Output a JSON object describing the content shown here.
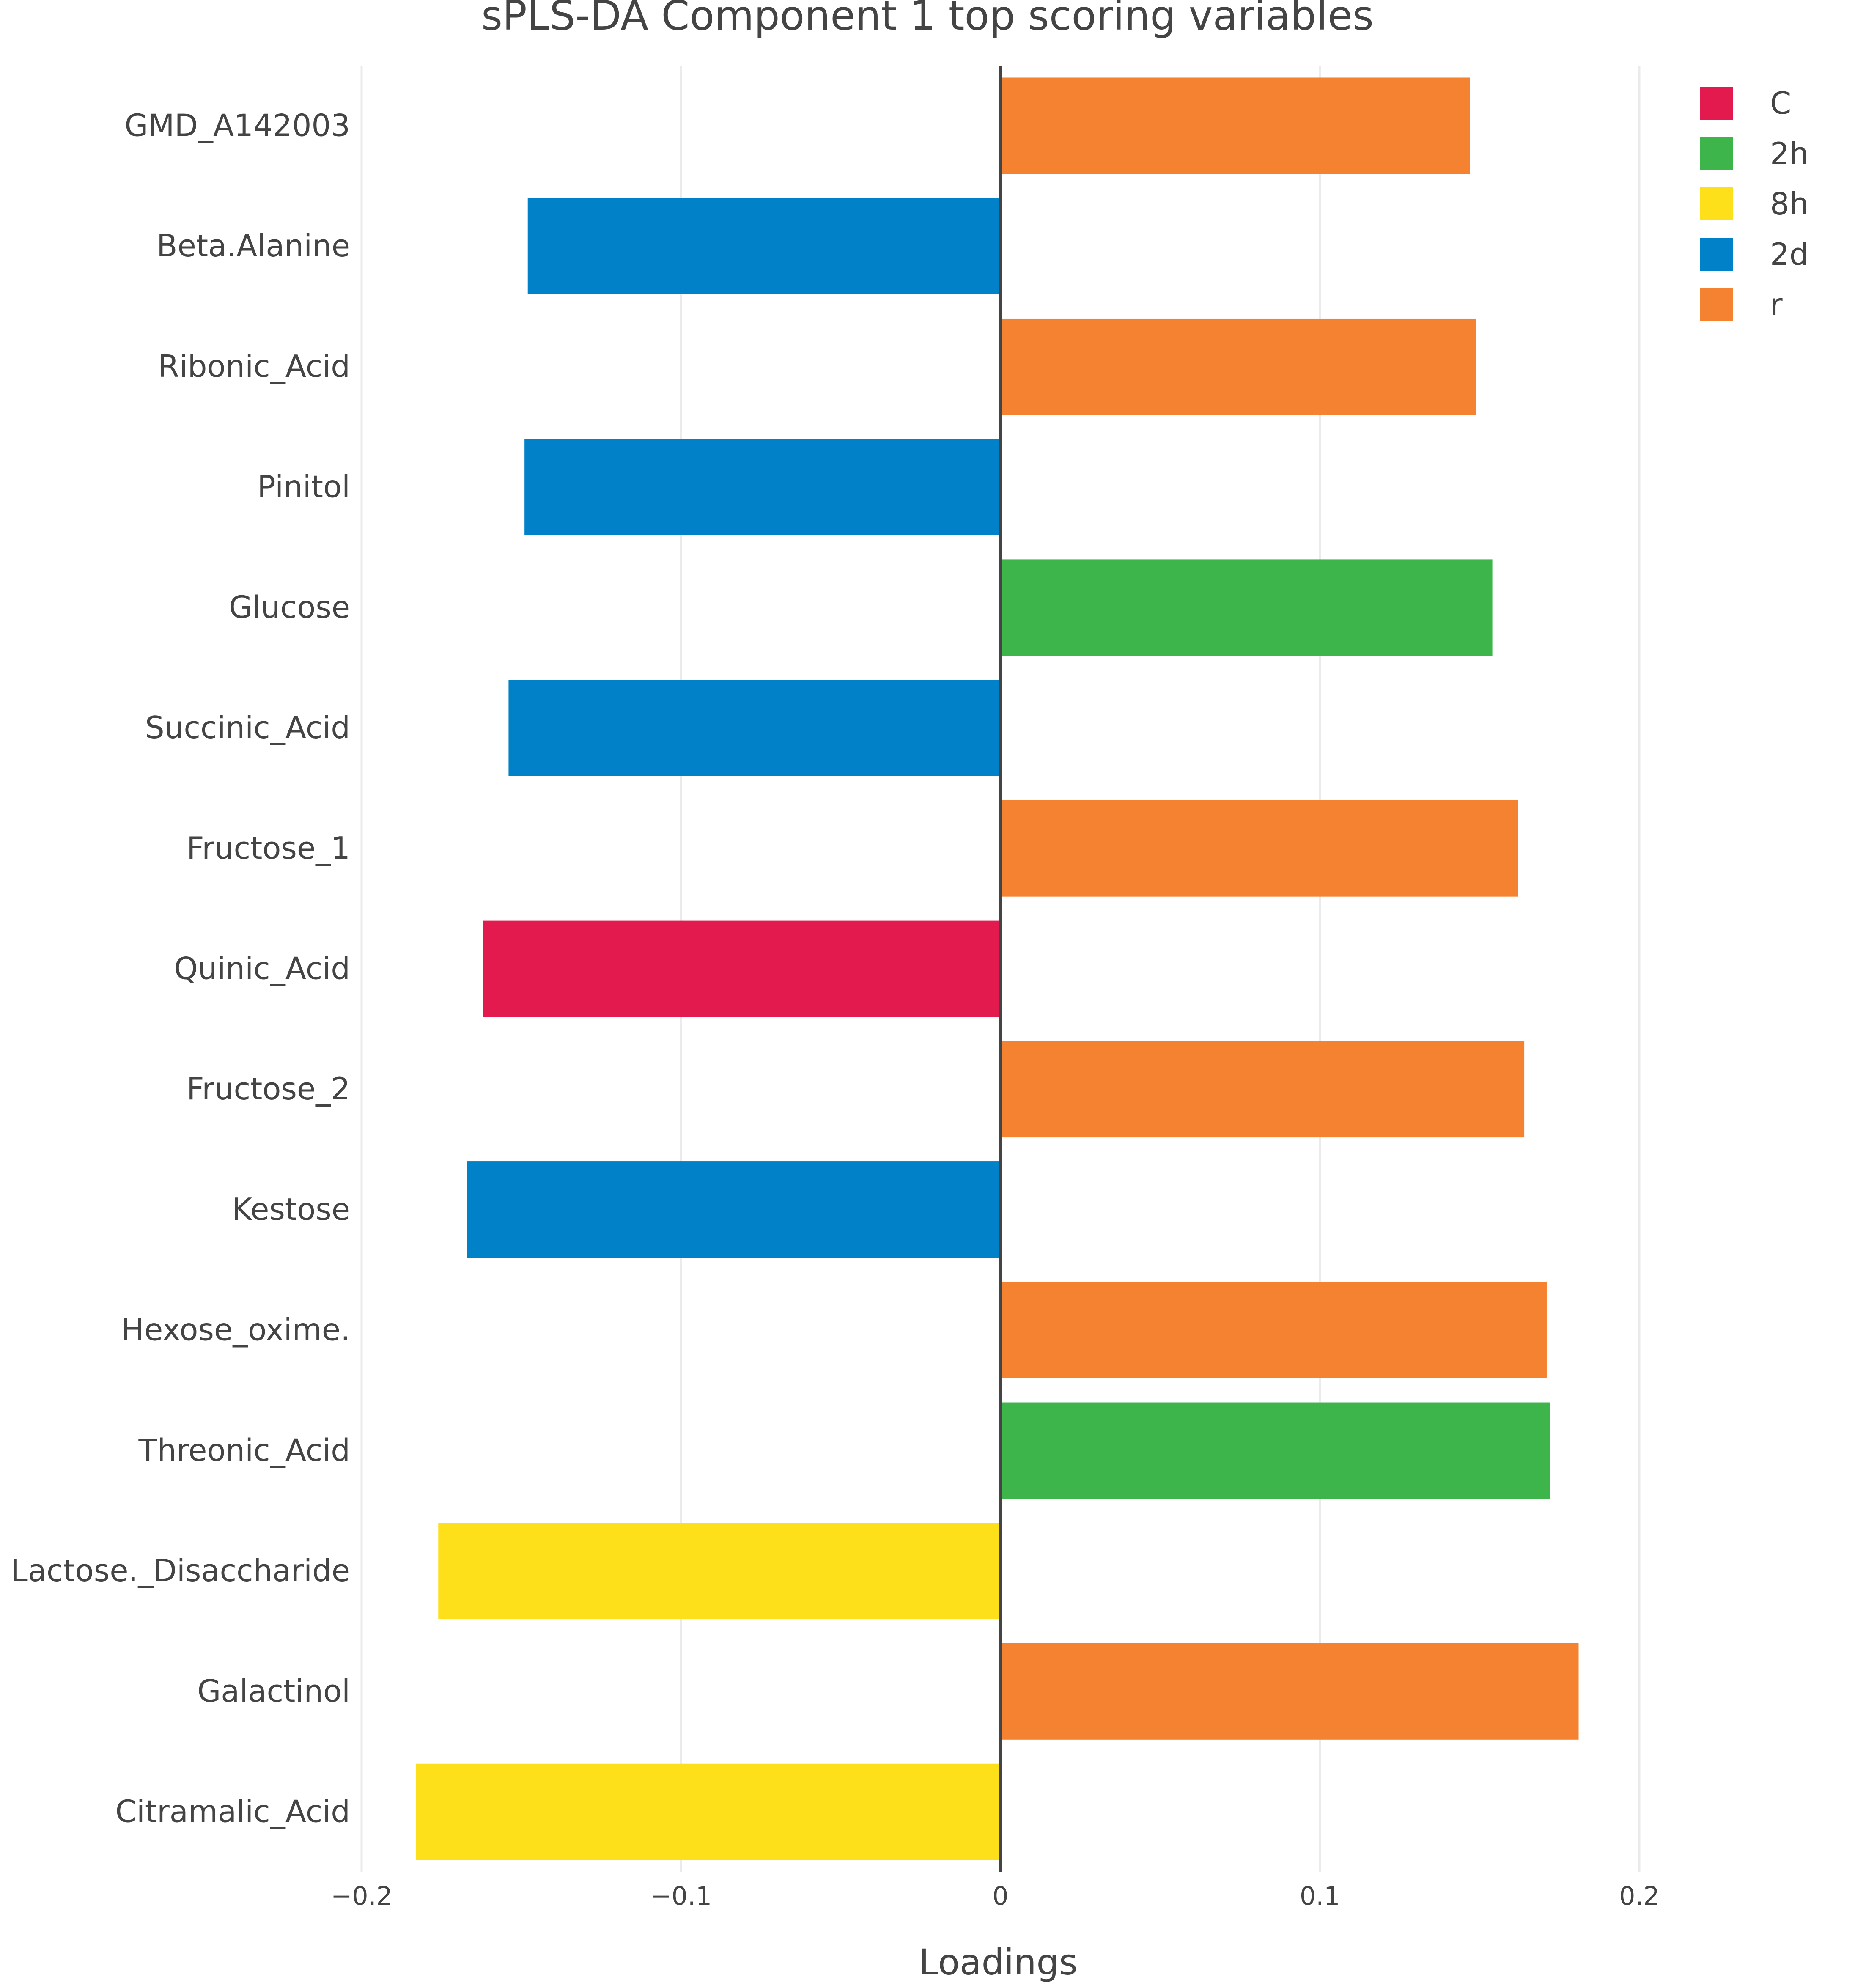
{
  "chart_data": {
    "type": "bar",
    "orientation": "horizontal",
    "title": "sPLS-DA Component 1 top scoring variables",
    "xlabel": "Loadings",
    "ylabel": "",
    "xlim": [
      -0.2,
      0.2
    ],
    "xticks": [
      -0.2,
      -0.1,
      0,
      0.1,
      0.2
    ],
    "xtick_labels": [
      "−0.2",
      "−0.1",
      "0",
      "0.1",
      "0.2"
    ],
    "grid": "vertical",
    "legend_position": "top-right",
    "legend": [
      {
        "name": "C",
        "color": "#e31a4e"
      },
      {
        "name": "2h",
        "color": "#3db54a"
      },
      {
        "name": "8h",
        "color": "#fde01a"
      },
      {
        "name": "2d",
        "color": "#0081c8"
      },
      {
        "name": "r",
        "color": "#f58231"
      }
    ],
    "categories": [
      "GMD_A142003",
      "Beta.Alanine",
      "Ribonic_Acid",
      "Pinitol",
      "Glucose",
      "Succinic_Acid",
      "Fructose_1",
      "Quinic_Acid",
      "Fructose_2",
      "Kestose",
      "Hexose_oxime.",
      "Threonic_Acid",
      "Lactose._Disaccharide",
      "Galactinol",
      "Citramalic_Acid"
    ],
    "values": [
      0.147,
      -0.148,
      0.149,
      -0.149,
      0.154,
      -0.154,
      0.162,
      -0.162,
      0.164,
      -0.167,
      0.171,
      0.172,
      -0.176,
      0.181,
      -0.183
    ],
    "groups": [
      "r",
      "2d",
      "r",
      "2d",
      "2h",
      "2d",
      "r",
      "C",
      "r",
      "2d",
      "r",
      "2h",
      "8h",
      "r",
      "8h"
    ]
  }
}
